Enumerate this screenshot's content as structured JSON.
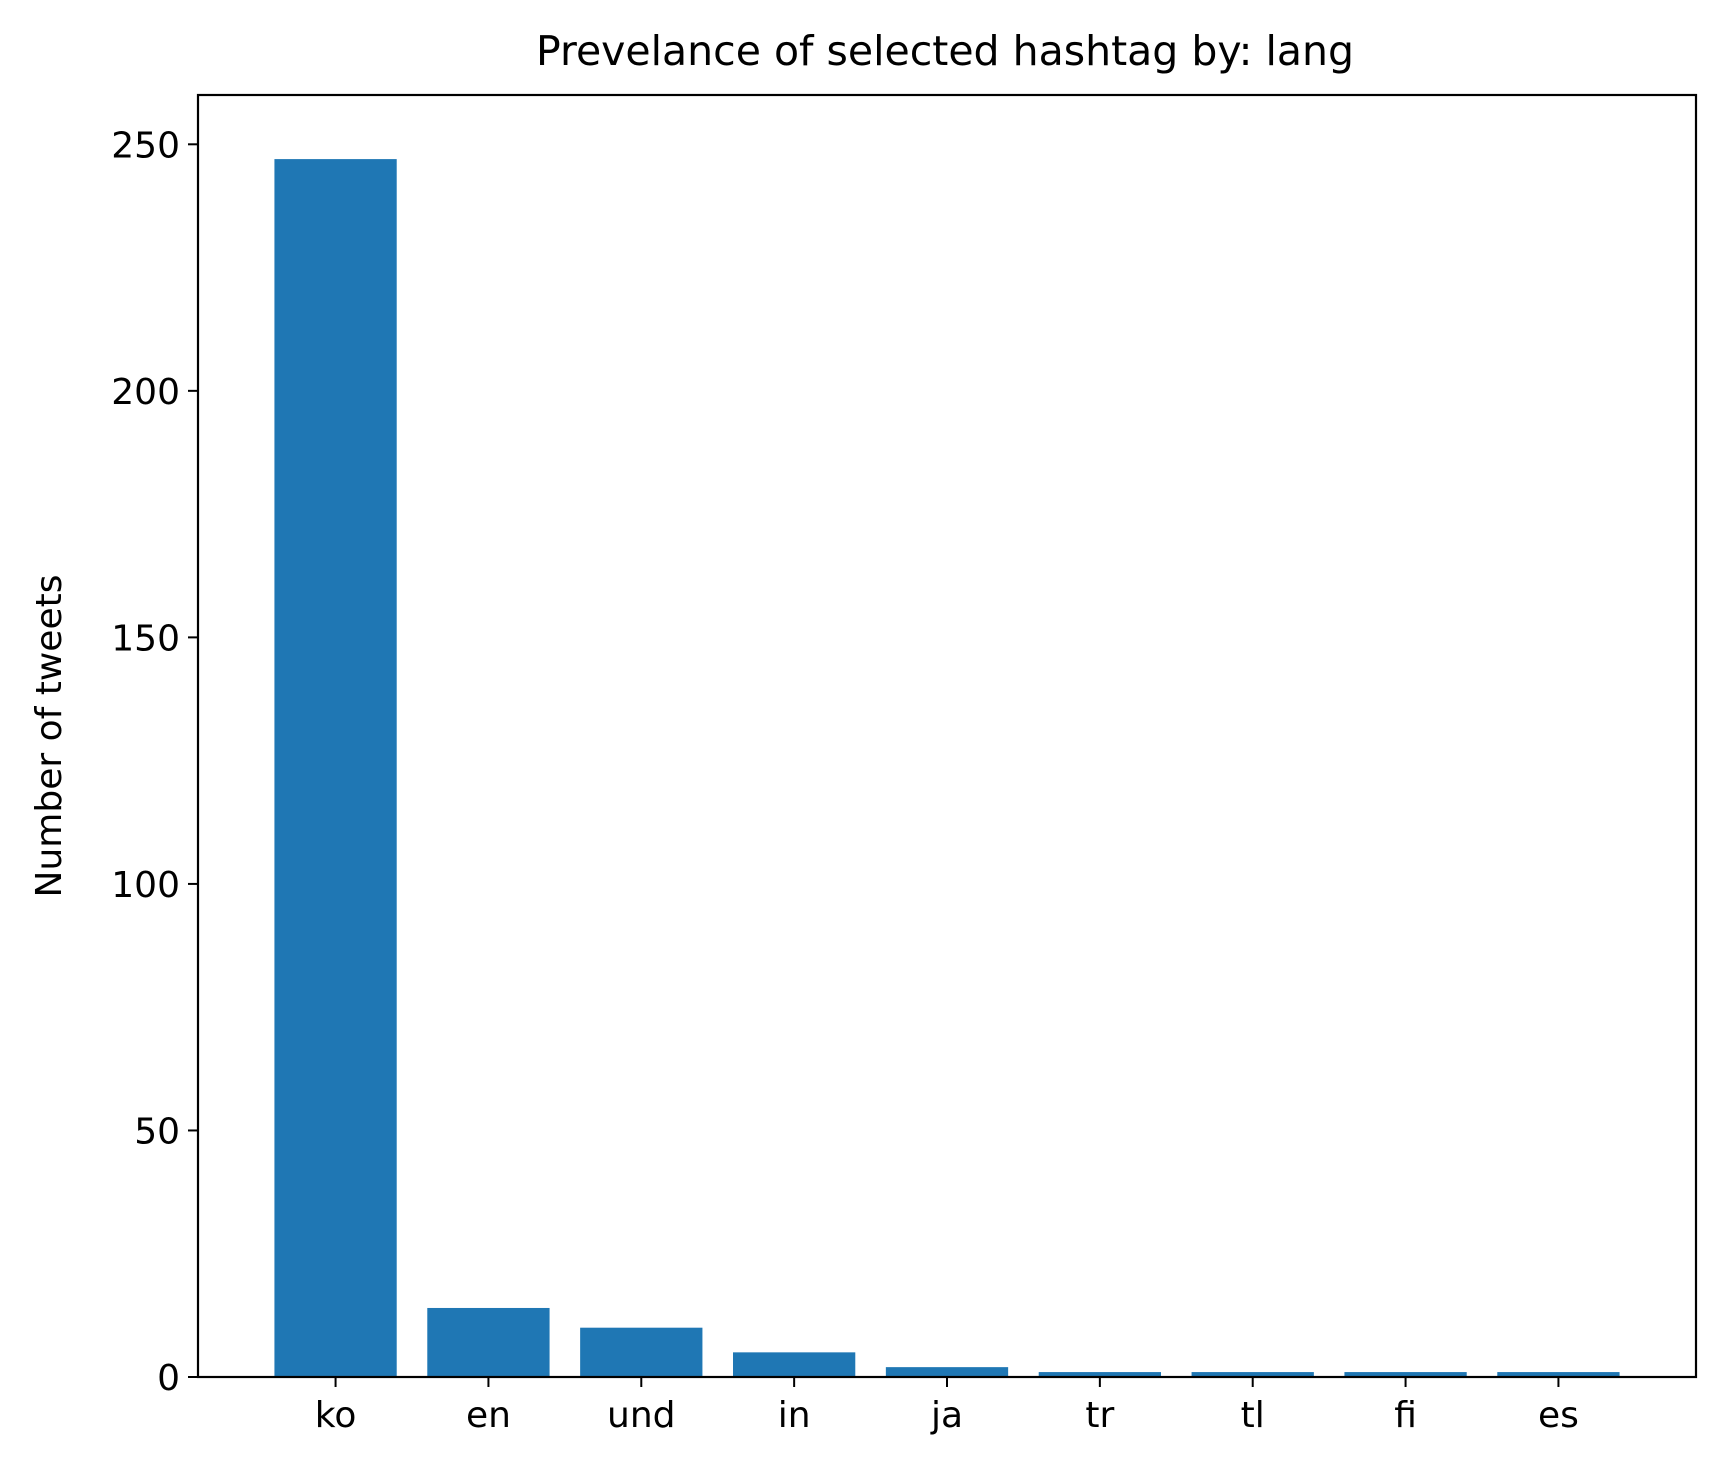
{
  "chart_data": {
    "type": "bar",
    "title": "Prevelance of selected hashtag by: lang",
    "xlabel": "",
    "ylabel": "Number of tweets",
    "categories": [
      "ko",
      "en",
      "und",
      "in",
      "ja",
      "tr",
      "tl",
      "fi",
      "es"
    ],
    "values": [
      247,
      14,
      10,
      5,
      2,
      1,
      1,
      1,
      1
    ],
    "ylim": [
      0,
      260
    ],
    "yticks": [
      0,
      50,
      100,
      150,
      200,
      250
    ],
    "grid": false,
    "bar_color": "#1f77b4"
  }
}
